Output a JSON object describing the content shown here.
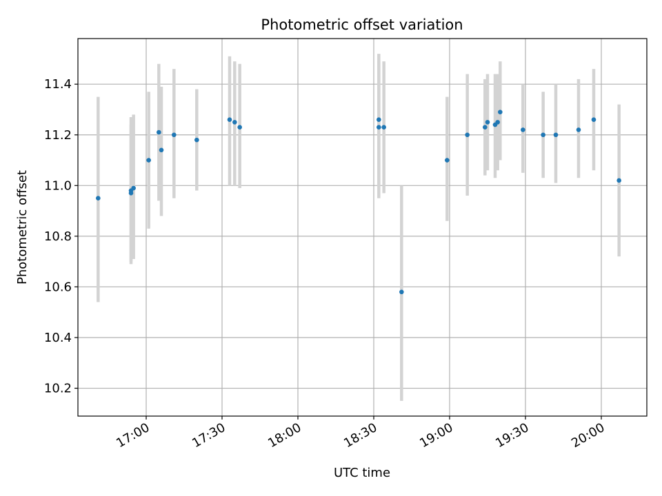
{
  "chart_data": {
    "type": "scatter",
    "title": "Photometric offset variation",
    "xlabel": "UTC time",
    "ylabel": "Photometric offset",
    "x_ticks": [
      "17:00",
      "17:30",
      "18:00",
      "18:30",
      "19:00",
      "19:30",
      "20:00"
    ],
    "y_ticks": [
      10.2,
      10.4,
      10.6,
      10.8,
      11.0,
      11.2,
      11.4
    ],
    "xlim": [
      "16:33",
      "20:18"
    ],
    "ylim": [
      10.09,
      11.58
    ],
    "grid": true,
    "colors": {
      "point": "#1f77b4",
      "errorbar": "#d3d3d3",
      "grid": "#b0b0b0"
    },
    "points": [
      {
        "x": "16:41",
        "y": 10.95,
        "ylow": 10.54,
        "yhigh": 11.35
      },
      {
        "x": "16:54",
        "y": 10.98,
        "ylow": 10.69,
        "yhigh": 11.27
      },
      {
        "x": "16:54",
        "y": 10.97,
        "ylow": 10.7,
        "yhigh": 11.24
      },
      {
        "x": "16:55",
        "y": 10.99,
        "ylow": 10.71,
        "yhigh": 11.28
      },
      {
        "x": "17:01",
        "y": 11.1,
        "ylow": 10.83,
        "yhigh": 11.37
      },
      {
        "x": "17:05",
        "y": 11.21,
        "ylow": 10.94,
        "yhigh": 11.48
      },
      {
        "x": "17:06",
        "y": 11.14,
        "ylow": 10.88,
        "yhigh": 11.39
      },
      {
        "x": "17:11",
        "y": 11.2,
        "ylow": 10.95,
        "yhigh": 11.46
      },
      {
        "x": "17:20",
        "y": 11.18,
        "ylow": 10.98,
        "yhigh": 11.38
      },
      {
        "x": "17:33",
        "y": 11.26,
        "ylow": 11.0,
        "yhigh": 11.51
      },
      {
        "x": "17:35",
        "y": 11.25,
        "ylow": 11.0,
        "yhigh": 11.49
      },
      {
        "x": "17:37",
        "y": 11.23,
        "ylow": 10.99,
        "yhigh": 11.48
      },
      {
        "x": "18:32",
        "y": 11.23,
        "ylow": 10.95,
        "yhigh": 11.49
      },
      {
        "x": "18:32",
        "y": 11.26,
        "ylow": 11.0,
        "yhigh": 11.52
      },
      {
        "x": "18:34",
        "y": 11.23,
        "ylow": 10.97,
        "yhigh": 11.49
      },
      {
        "x": "18:41",
        "y": 10.58,
        "ylow": 10.15,
        "yhigh": 11.0
      },
      {
        "x": "18:59",
        "y": 11.1,
        "ylow": 10.86,
        "yhigh": 11.35
      },
      {
        "x": "19:07",
        "y": 11.2,
        "ylow": 10.96,
        "yhigh": 11.44
      },
      {
        "x": "19:14",
        "y": 11.23,
        "ylow": 11.04,
        "yhigh": 11.42
      },
      {
        "x": "19:15",
        "y": 11.25,
        "ylow": 11.06,
        "yhigh": 11.44
      },
      {
        "x": "19:18",
        "y": 11.24,
        "ylow": 11.03,
        "yhigh": 11.44
      },
      {
        "x": "19:19",
        "y": 11.25,
        "ylow": 11.06,
        "yhigh": 11.44
      },
      {
        "x": "19:20",
        "y": 11.29,
        "ylow": 11.1,
        "yhigh": 11.49
      },
      {
        "x": "19:29",
        "y": 11.22,
        "ylow": 11.05,
        "yhigh": 11.4
      },
      {
        "x": "19:37",
        "y": 11.2,
        "ylow": 11.03,
        "yhigh": 11.37
      },
      {
        "x": "19:42",
        "y": 11.2,
        "ylow": 11.01,
        "yhigh": 11.4
      },
      {
        "x": "19:51",
        "y": 11.22,
        "ylow": 11.03,
        "yhigh": 11.42
      },
      {
        "x": "19:57",
        "y": 11.26,
        "ylow": 11.06,
        "yhigh": 11.46
      },
      {
        "x": "20:07",
        "y": 11.02,
        "ylow": 10.72,
        "yhigh": 11.32
      }
    ]
  }
}
